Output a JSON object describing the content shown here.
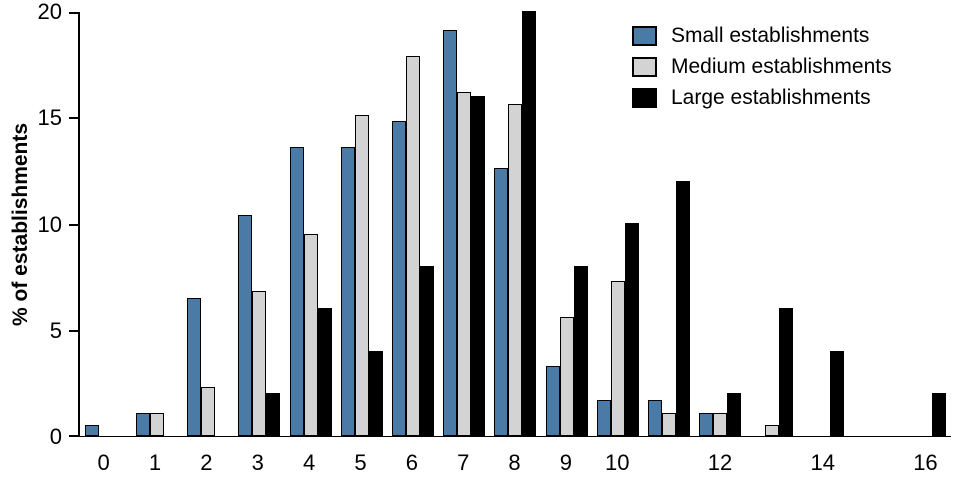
{
  "chart_data": {
    "type": "bar",
    "title": "",
    "xlabel": "",
    "ylabel": "% of establishments",
    "ylim": [
      0,
      20
    ],
    "yticks": [
      0,
      5,
      10,
      15,
      20
    ],
    "grid": false,
    "legend_position": "top-right",
    "categories": [
      "0",
      "1",
      "2",
      "3",
      "4",
      "5",
      "6",
      "7",
      "8",
      "9",
      "10",
      "11",
      "12",
      "13",
      "14",
      "15",
      "16"
    ],
    "x_tick_labels": [
      "0",
      "1",
      "2",
      "3",
      "4",
      "5",
      "6",
      "7",
      "8",
      "9",
      "10",
      "",
      "12",
      "",
      "14",
      "",
      "16"
    ],
    "series": [
      {
        "name": "Small establishments",
        "color": "#4a7ba7",
        "values": [
          0.5,
          1.1,
          6.5,
          10.4,
          13.6,
          13.6,
          14.8,
          19.1,
          12.6,
          3.3,
          1.7,
          1.7,
          1.1,
          0,
          0,
          0,
          0
        ]
      },
      {
        "name": "Medium establishments",
        "color": "#d3d3d3",
        "values": [
          0,
          1.1,
          2.3,
          6.8,
          9.5,
          15.1,
          17.9,
          16.2,
          15.6,
          5.6,
          7.3,
          1.1,
          1.1,
          0.5,
          0,
          0,
          0
        ]
      },
      {
        "name": "Large establishments",
        "color": "#000000",
        "values": [
          0,
          0,
          0,
          2,
          6,
          4,
          8,
          16,
          20,
          8,
          10,
          12,
          2,
          6,
          4,
          0,
          2
        ]
      }
    ]
  }
}
